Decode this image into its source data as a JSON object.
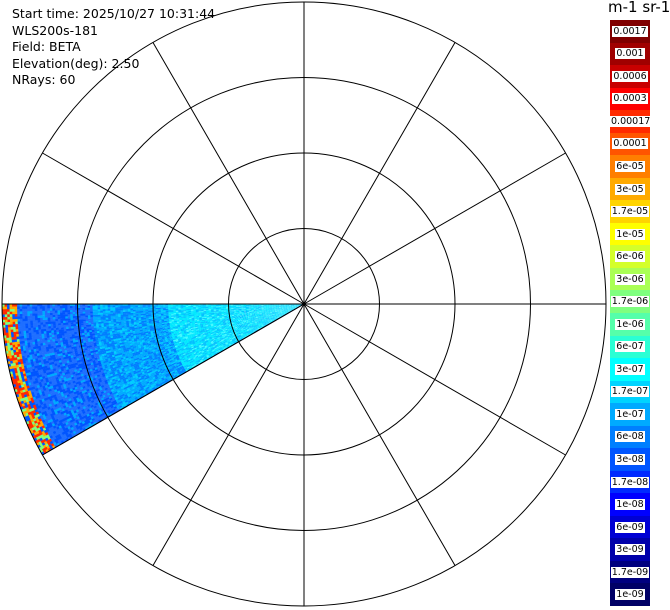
{
  "info": {
    "start_time": "Start time: 2025/10/27 10:31:44",
    "instrument": "WLS200s-181",
    "field": "Field: BETA",
    "elevation": "Elevation(deg): 2.50",
    "nrays": "NRays: 60"
  },
  "colorbar_title": "m-1 sr-1",
  "chart_data": {
    "type": "heatmap",
    "projection": "polar-ppi",
    "title": "",
    "field": "BETA",
    "scale": "log",
    "sector_azimuth_deg": [
      240,
      270
    ],
    "rings": 4,
    "spokes_deg": [
      0,
      30,
      60,
      90,
      120,
      150,
      180,
      210,
      240,
      270,
      300,
      330
    ],
    "colorbar": {
      "labels": [
        "0.0017",
        "0.001",
        "0.0006",
        "0.0003",
        "0.00017",
        "0.0001",
        "6e-05",
        "3e-05",
        "1.7e-05",
        "1e-05",
        "6e-06",
        "3e-06",
        "1.7e-06",
        "1e-06",
        "6e-07",
        "3e-07",
        "1.7e-07",
        "1e-07",
        "6e-08",
        "3e-08",
        "1.7e-08",
        "1e-08",
        "6e-09",
        "3e-09",
        "1.7e-09",
        "1e-09"
      ],
      "colors": [
        "#800000",
        "#a00000",
        "#c80000",
        "#ff0000",
        "#ff2a00",
        "#ff5500",
        "#ff7f00",
        "#ffaa00",
        "#ffd400",
        "#ffff00",
        "#d4ff2a",
        "#aaff55",
        "#7fff7f",
        "#55ffaa",
        "#2affd4",
        "#00ffff",
        "#00d4ff",
        "#00aaff",
        "#007fff",
        "#0055ff",
        "#002aff",
        "#0000ff",
        "#0000d4",
        "#0000aa",
        "#00007f",
        "#000066"
      ]
    }
  }
}
